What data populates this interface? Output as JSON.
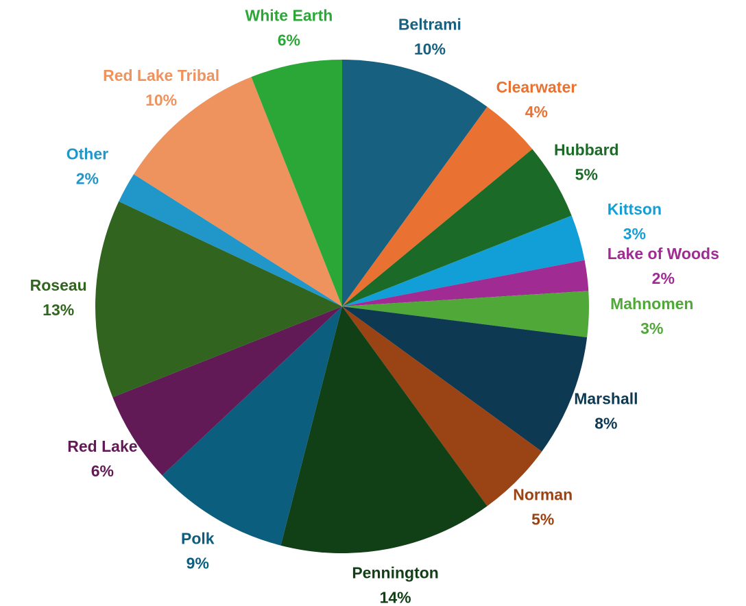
{
  "chart_data": {
    "type": "pie",
    "slices": [
      {
        "name": "Beltrami",
        "value": 10,
        "label": "10%",
        "color": "#17607F"
      },
      {
        "name": "Clearwater",
        "value": 4,
        "label": "4%",
        "color": "#E97232"
      },
      {
        "name": "Hubbard",
        "value": 5,
        "label": "5%",
        "color": "#1C6A27"
      },
      {
        "name": "Kittson",
        "value": 3,
        "label": "3%",
        "color": "#129FD8"
      },
      {
        "name": "Lake of Woods",
        "value": 2,
        "label": "2%",
        "color": "#A02B93"
      },
      {
        "name": "Mahnomen",
        "value": 3,
        "label": "3%",
        "color": "#4FA838"
      },
      {
        "name": "Marshall",
        "value": 8,
        "label": "8%",
        "color": "#0E3952"
      },
      {
        "name": "Norman",
        "value": 5,
        "label": "5%",
        "color": "#9A4314"
      },
      {
        "name": "Pennington",
        "value": 14,
        "label": "14%",
        "color": "#124016"
      },
      {
        "name": "Polk",
        "value": 9,
        "label": "9%",
        "color": "#0C5E7E"
      },
      {
        "name": "Red Lake",
        "value": 6,
        "label": "6%",
        "color": "#621A57"
      },
      {
        "name": "Roseau",
        "value": 13,
        "label": "13%",
        "color": "#31651F"
      },
      {
        "name": "Other",
        "value": 2,
        "label": "2%",
        "color": "#2196C9"
      },
      {
        "name": "Red Lake Tribal",
        "value": 10,
        "label": "10%",
        "color": "#EE925E"
      },
      {
        "name": "White Earth",
        "value": 6,
        "label": "6%",
        "color": "#2BA738"
      }
    ],
    "start_angle": "12 o'clock",
    "direction": "clockwise",
    "title": "",
    "legend": "none",
    "data_labels": "outside"
  }
}
